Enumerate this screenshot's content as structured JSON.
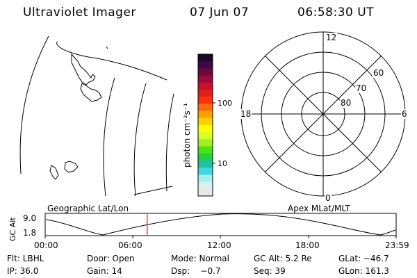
{
  "header": {
    "title": "Ultraviolet Imager",
    "date": "07 Jun 07",
    "time": "06:58:30 UT"
  },
  "colorbar": {
    "unit_label": "photon cm⁻²s⁻¹",
    "tick_labels": [
      "100",
      "10"
    ],
    "colors": [
      "#1a0a2a",
      "#3a0a4a",
      "#6a0a3a",
      "#9a0a3a",
      "#c8102a",
      "#e02020",
      "#ff3010",
      "#ff6a10",
      "#ffa000",
      "#ffd000",
      "#ffff00",
      "#d8ff20",
      "#a0f020",
      "#50e010",
      "#20d040",
      "#20c0a0",
      "#40d8e0",
      "#a0f0f0",
      "#d8f0f0",
      "#e8e8e8"
    ]
  },
  "polar": {
    "mlt_labels": {
      "top": "12",
      "bottom": "0",
      "left": "18",
      "right": "6"
    },
    "lat_labels": [
      "60",
      "70",
      "80"
    ]
  },
  "timeline": {
    "left_label": "Geographic Lat/Lon",
    "right_label": "Apex MLat/MLT",
    "y_axis_label": "GC Alt",
    "y_ticks": [
      "9.0",
      "1.8"
    ],
    "x_ticks": [
      "00:00",
      "06:00",
      "12:00",
      "18:00",
      "23:59"
    ],
    "current_time_fraction": 0.2906,
    "marker_color": "#ff0000"
  },
  "info": {
    "row1": {
      "filter": "Flt: LBHL",
      "door": "Door: Open",
      "mode": "Mode: Normal",
      "gc_alt": "GC Alt: 5.2 Re",
      "glat": "GLat: −46.7"
    },
    "row2": {
      "ip": "IP: 36.0",
      "gain": "Gain: 14",
      "dsp": "Dsp:    −0.7",
      "seq": "Seq: 39",
      "glon": "GLon: 161.3"
    }
  }
}
